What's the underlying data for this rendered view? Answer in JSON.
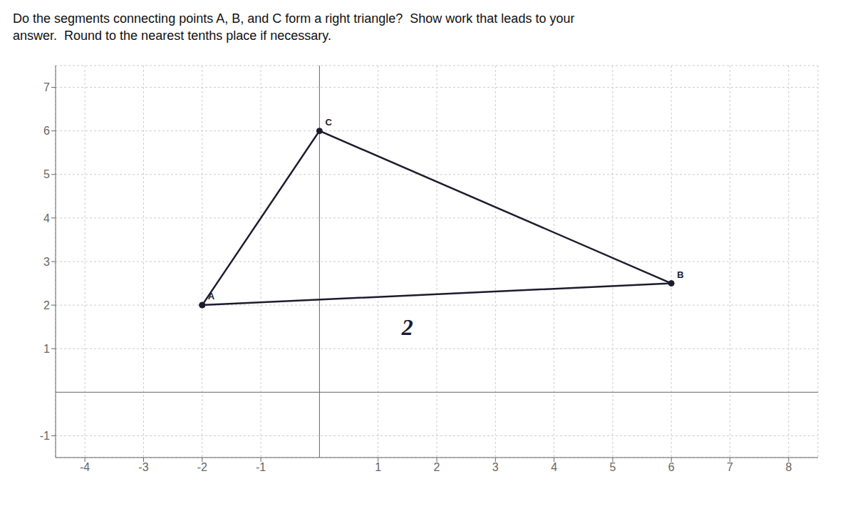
{
  "chart_data": {
    "type": "line",
    "title": "Do the segments connecting points A, B, and C form a right triangle?  Show work that leads to your\nanswer.  Round to the nearest tenths place if necessary.",
    "x": [
      -2,
      6,
      0
    ],
    "values": [
      2,
      2.5,
      6
    ],
    "labels": [
      "A",
      "B",
      "C"
    ],
    "color": "#1c1c2e",
    "annotations": [
      {
        "text": "2",
        "x": 1.5,
        "y": 1.5
      }
    ],
    "xlim": [
      -4.5,
      8.5
    ],
    "ylim": [
      -1.5,
      7.5
    ],
    "xticks": [
      -4,
      -3,
      -2,
      -1,
      1,
      2,
      3,
      4,
      5,
      6,
      7,
      8
    ],
    "yticks": [
      -1,
      1,
      2,
      3,
      4,
      5,
      6,
      7
    ],
    "grid": true
  }
}
